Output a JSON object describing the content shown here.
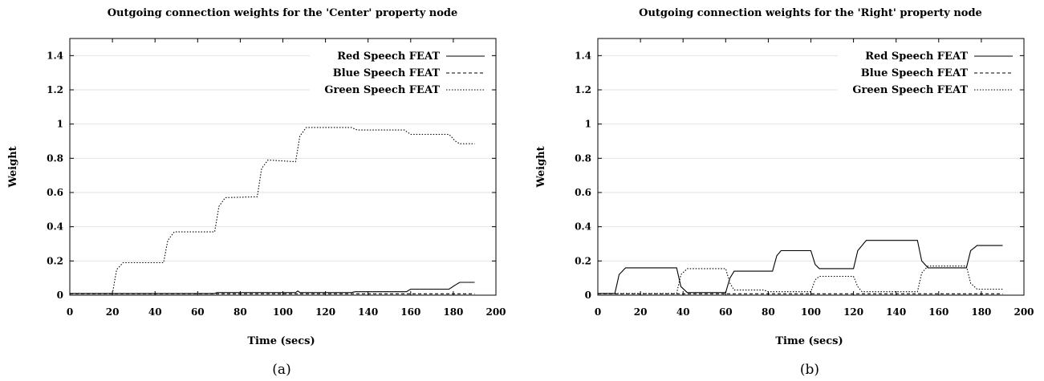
{
  "chart_data": [
    {
      "type": "line",
      "title": "Outgoing connection weights for the 'Center' property node",
      "xlabel": "Time (secs)",
      "ylabel": "Weight",
      "caption": "(a)",
      "xlim": [
        0,
        200
      ],
      "ylim": [
        0,
        1.5
      ],
      "xticks": [
        0,
        20,
        40,
        60,
        80,
        100,
        120,
        140,
        160,
        180,
        200
      ],
      "yticks": [
        0,
        0.2,
        0.4,
        0.6,
        0.8,
        1,
        1.2,
        1.4
      ],
      "grid": true,
      "legend_position": "top-right",
      "series": [
        {
          "name": "Red Speech FEAT",
          "style": "solid",
          "x": [
            0,
            20,
            68,
            69,
            106,
            107,
            108,
            132,
            134,
            158,
            160,
            178,
            181,
            183,
            190
          ],
          "y": [
            0.01,
            0.01,
            0.01,
            0.015,
            0.015,
            0.025,
            0.015,
            0.015,
            0.02,
            0.02,
            0.035,
            0.035,
            0.06,
            0.075,
            0.075
          ]
        },
        {
          "name": "Blue Speech FEAT",
          "style": "dashed",
          "x": [
            0,
            190
          ],
          "y": [
            0.008,
            0.008
          ]
        },
        {
          "name": "Green Speech FEAT",
          "style": "dotted",
          "x": [
            0,
            20,
            22,
            25,
            44,
            46,
            49,
            68,
            70,
            73,
            88,
            90,
            93,
            106,
            108,
            111,
            132,
            135,
            157,
            160,
            178,
            181,
            183,
            190
          ],
          "y": [
            0.01,
            0.01,
            0.15,
            0.19,
            0.19,
            0.32,
            0.37,
            0.37,
            0.52,
            0.57,
            0.575,
            0.74,
            0.79,
            0.78,
            0.93,
            0.98,
            0.98,
            0.965,
            0.965,
            0.94,
            0.94,
            0.9,
            0.885,
            0.885
          ]
        }
      ]
    },
    {
      "type": "line",
      "title": "Outgoing connection weights for the 'Right' property node",
      "xlabel": "Time (secs)",
      "ylabel": "Weight",
      "caption": "(b)",
      "xlim": [
        0,
        200
      ],
      "ylim": [
        0,
        1.5
      ],
      "xticks": [
        0,
        20,
        40,
        60,
        80,
        100,
        120,
        140,
        160,
        180,
        200
      ],
      "yticks": [
        0,
        0.2,
        0.4,
        0.6,
        0.8,
        1,
        1.2,
        1.4
      ],
      "grid": true,
      "legend_position": "top-right",
      "series": [
        {
          "name": "Red Speech FEAT",
          "style": "solid",
          "x": [
            0,
            8,
            10,
            13,
            37,
            39,
            42,
            60,
            62,
            64,
            82,
            84,
            86,
            100,
            102,
            104,
            120,
            122,
            126,
            150,
            152,
            155,
            173,
            175,
            178,
            190
          ],
          "y": [
            0.01,
            0.01,
            0.12,
            0.16,
            0.16,
            0.05,
            0.015,
            0.015,
            0.1,
            0.14,
            0.14,
            0.23,
            0.26,
            0.26,
            0.18,
            0.155,
            0.155,
            0.26,
            0.32,
            0.32,
            0.2,
            0.16,
            0.16,
            0.26,
            0.29,
            0.29
          ]
        },
        {
          "name": "Blue Speech FEAT",
          "style": "dashed",
          "x": [
            0,
            190
          ],
          "y": [
            0.008,
            0.008
          ]
        },
        {
          "name": "Green Speech FEAT",
          "style": "dotted",
          "x": [
            0,
            8,
            10,
            13,
            37,
            39,
            42,
            60,
            62,
            64,
            78,
            80,
            100,
            102,
            104,
            120,
            122,
            124,
            150,
            152,
            155,
            173,
            175,
            178,
            190
          ],
          "y": [
            0.01,
            0.01,
            0.01,
            0.01,
            0.01,
            0.12,
            0.155,
            0.155,
            0.07,
            0.03,
            0.03,
            0.02,
            0.02,
            0.09,
            0.11,
            0.11,
            0.05,
            0.02,
            0.02,
            0.13,
            0.17,
            0.17,
            0.07,
            0.035,
            0.035
          ]
        }
      ]
    }
  ]
}
